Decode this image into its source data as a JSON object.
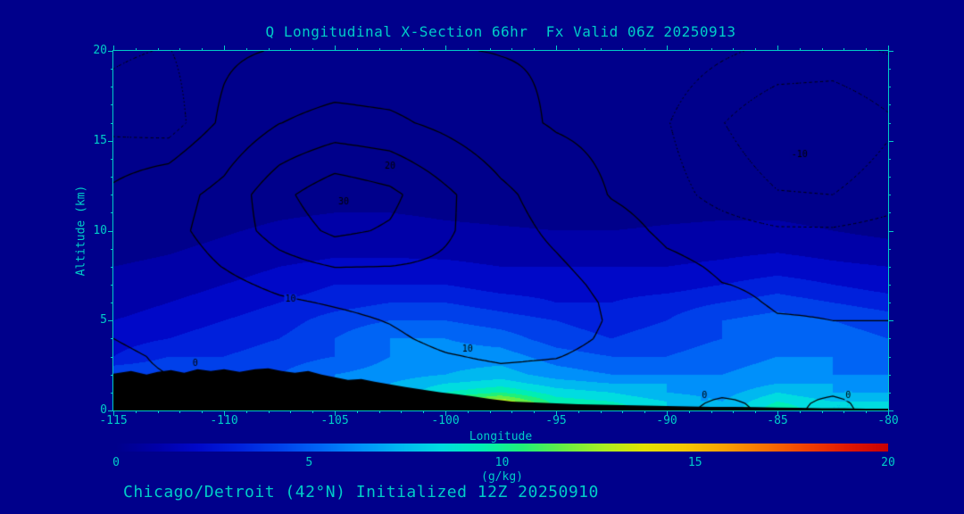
{
  "page": {
    "background": "#00008b",
    "text_color": "#00cdc8"
  },
  "title": "Q Longitudinal X-Section 66hr  Fx Valid 06Z 20250913",
  "caption": "Chicago/Detroit (42°N) Initialized 12Z 20250910",
  "axes": {
    "x_label": "Longitude",
    "y_label": "Altitude (km)",
    "x_ticks": [
      -115,
      -110,
      -105,
      -100,
      -95,
      -90,
      -85,
      -80
    ],
    "y_ticks": [
      0,
      5,
      10,
      15,
      20
    ],
    "x_minor_step": 1,
    "y_minor_step": 1
  },
  "colorbar": {
    "label": "(g/kg)",
    "ticks": [
      0,
      5,
      10,
      15,
      20
    ],
    "min": 0,
    "max": 20
  },
  "chart_data": {
    "type": "heatmap",
    "title": "Q Longitudinal X-Section 66hr  Fx Valid 06Z 20250913",
    "subtitle": "Chicago/Detroit (42°N) Initialized 12Z 20250910",
    "xlabel": "Longitude",
    "ylabel": "Altitude (km)",
    "units": "g/kg",
    "xlim": [
      -115,
      -80
    ],
    "ylim": [
      0,
      20
    ],
    "palette": [
      "#00008b",
      "#0000a8",
      "#0008c8",
      "#0020dc",
      "#0040ea",
      "#0064f5",
      "#0090fa",
      "#00b8f0",
      "#00dce0",
      "#00eeb4",
      "#20f078",
      "#66ee44",
      "#aaee22",
      "#e2e200",
      "#f5c800",
      "#faa000",
      "#f87000",
      "#f04000",
      "#e01800",
      "#c80000"
    ],
    "x_lons": [
      -115,
      -112.5,
      -110,
      -107.5,
      -105,
      -102.5,
      -100,
      -97.5,
      -95,
      -92.5,
      -90,
      -87.5,
      -85,
      -82.5,
      -80
    ],
    "alt_levels_km": [
      0,
      0.5,
      1,
      1.5,
      2,
      3,
      4,
      5,
      6,
      7,
      8,
      10,
      12,
      16,
      20
    ],
    "q_gkg": [
      [
        3,
        4,
        5,
        5,
        6,
        8,
        12,
        15,
        10,
        10,
        8,
        7,
        10,
        8,
        8
      ],
      [
        3,
        4,
        5,
        5,
        6,
        8,
        11,
        13,
        9.5,
        9,
        8,
        7,
        9,
        8,
        8
      ],
      [
        3,
        4,
        4,
        5,
        6,
        7,
        9,
        10,
        8.5,
        8,
        7,
        6.5,
        8,
        7,
        7
      ],
      [
        5,
        4,
        4,
        5,
        6,
        7,
        8,
        8.5,
        7.5,
        7,
        7,
        6,
        7,
        7,
        6.5
      ],
      [
        5,
        5,
        4.5,
        5,
        6,
        6.5,
        7,
        7.5,
        6.5,
        6,
        6,
        6,
        6.5,
        6,
        6
      ],
      [
        3,
        4,
        4,
        4.5,
        5,
        6,
        6.5,
        6.5,
        5.5,
        5,
        5,
        5.5,
        6,
        6,
        5.5
      ],
      [
        2.5,
        3,
        3.5,
        4,
        5,
        6,
        6,
        5.5,
        4.5,
        4,
        4.5,
        5,
        6,
        5.5,
        5
      ],
      [
        2,
        2.5,
        3,
        3.5,
        4.5,
        5,
        5,
        4.5,
        4,
        3.5,
        4,
        5,
        5.5,
        5,
        4.5
      ],
      [
        1.5,
        2,
        2.5,
        3,
        3.5,
        4,
        4,
        3.5,
        3,
        3,
        3.5,
        4,
        4.5,
        4,
        3.5
      ],
      [
        1.2,
        1.5,
        2,
        2.5,
        3,
        3,
        3,
        2.5,
        2.5,
        2.5,
        2.5,
        3,
        3.5,
        3,
        2.5
      ],
      [
        1,
        1.2,
        1.5,
        2,
        2.2,
        2.2,
        2.2,
        2,
        2,
        2,
        2,
        2.2,
        2.5,
        2.2,
        2
      ],
      [
        0.4,
        0.6,
        0.9,
        1.2,
        1.4,
        1.4,
        1.2,
        1.1,
        1,
        1,
        1.1,
        1.2,
        1.2,
        1,
        0.7
      ],
      [
        0.2,
        0.2,
        0.3,
        0.5,
        0.6,
        0.6,
        0.5,
        0.4,
        0.4,
        0.4,
        0.5,
        0.5,
        0.5,
        0.4,
        0.3
      ],
      [
        0.1,
        0.1,
        0.1,
        0.1,
        0.2,
        0.2,
        0.1,
        0.1,
        0.1,
        0.1,
        0.1,
        0.1,
        0.1,
        0.1,
        0.1
      ],
      [
        0,
        0,
        0,
        0,
        0,
        0,
        0,
        0,
        0,
        0,
        0,
        0,
        0,
        0,
        0
      ]
    ],
    "contour_overlay": {
      "levels_solid": [
        0,
        10,
        20,
        30
      ],
      "levels_dashed": [
        -15,
        -10,
        -5
      ],
      "values": [
        [
          -0.2,
          0,
          0.1,
          0.2,
          0.4,
          0.9,
          1.6,
          2.1,
          1.9,
          1.2,
          0.5,
          -0.5,
          0.4,
          -0.4,
          0.6
        ],
        [
          -0.2,
          0,
          0.1,
          0.3,
          0.6,
          1.3,
          2.4,
          3.1,
          2.8,
          1.8,
          0.8,
          -0.3,
          0.5,
          -0.3,
          0.7
        ],
        [
          -0.1,
          0.1,
          0.2,
          0.4,
          0.9,
          1.9,
          3.4,
          4.3,
          3.9,
          2.5,
          1.1,
          0.4,
          0.7,
          0.2,
          0.8
        ],
        [
          -0.1,
          0.1,
          0.3,
          0.6,
          1.2,
          2.6,
          4.6,
          5.9,
          5.3,
          3.4,
          1.5,
          0.5,
          0.3,
          0.1,
          0.5
        ],
        [
          -0.3,
          0,
          0.4,
          0.9,
          1.7,
          3.4,
          6,
          7.6,
          6.9,
          4.4,
          2,
          0.6,
          0.2,
          0.1,
          0.3
        ],
        [
          -0.3,
          0.2,
          0.7,
          1.6,
          3,
          5.3,
          9.2,
          11.5,
          10.4,
          6.6,
          3,
          1,
          0.3,
          0.1,
          0.2
        ],
        [
          0,
          0.5,
          1.4,
          3,
          5,
          8.1,
          12.7,
          15.1,
          13.3,
          8.4,
          3.8,
          1.2,
          0.3,
          0.1,
          0.1
        ],
        [
          0.2,
          1,
          2.7,
          5.2,
          7.4,
          10.5,
          14.9,
          16.8,
          14.6,
          9.1,
          4.1,
          1.3,
          0.2,
          0,
          0
        ],
        [
          0.5,
          1.9,
          4.7,
          8.4,
          10.9,
          13.3,
          16.1,
          17,
          14.2,
          8.7,
          3.7,
          0.8,
          -0.3,
          -0.3,
          -0.2
        ],
        [
          1,
          3.3,
          7.4,
          12.2,
          15.3,
          16.4,
          17.3,
          16.3,
          12.9,
          7.5,
          2.7,
          0.1,
          -0.6,
          -0.7,
          -0.5
        ],
        [
          1.5,
          4.9,
          10.3,
          16.4,
          20.2,
          19.9,
          18.3,
          15.5,
          11.3,
          6,
          1.5,
          -0.8,
          -1.4,
          -1.4,
          -1
        ],
        [
          2,
          7.2,
          14.3,
          24.1,
          32,
          28.9,
          21.3,
          14,
          8.1,
          2.9,
          -1.4,
          -3,
          -4.4,
          -4.5,
          -3.3
        ],
        [
          1.3,
          6.1,
          13,
          27.2,
          36.9,
          32.4,
          22,
          12.2,
          5.2,
          -0.4,
          -3.2,
          -6.6,
          -9.7,
          -10,
          -7.3
        ],
        [
          -6.5,
          -8,
          1.5,
          9.8,
          13.6,
          12,
          7.5,
          2.5,
          -0.8,
          -2.2,
          -4.7,
          -9.8,
          -14.3,
          -14.9,
          -10.9
        ],
        [
          -4.5,
          -5.2,
          -1.3,
          0.5,
          1,
          0.8,
          0.3,
          -0.2,
          -0.6,
          -1.2,
          -2.1,
          -4.2,
          -6.2,
          -6.5,
          -4.7
        ]
      ]
    },
    "contour_labels": [
      {
        "text": "30",
        "lon": -104.6,
        "alt": 11.6
      },
      {
        "text": "20",
        "lon": -102.5,
        "alt": 13.6
      },
      {
        "text": "10",
        "lon": -99.0,
        "alt": 3.4
      },
      {
        "text": "10",
        "lon": -107.0,
        "alt": 6.2
      },
      {
        "text": "0",
        "lon": -111.3,
        "alt": 2.6
      },
      {
        "text": "0",
        "lon": -88.3,
        "alt": 0.8
      },
      {
        "text": "0",
        "lon": -81.8,
        "alt": 0.8
      },
      {
        "text": "-10",
        "lon": -84.0,
        "alt": 14.2
      }
    ],
    "terrain_km": {
      "lons": [
        -115,
        -114.2,
        -113.5,
        -113,
        -112.4,
        -111.8,
        -111.2,
        -110.6,
        -110,
        -109.3,
        -108.6,
        -108,
        -107.4,
        -106.8,
        -106.2,
        -105.6,
        -105,
        -104.4,
        -103.8,
        -103.2,
        -102.5,
        -101.8,
        -101,
        -100.2,
        -99.5,
        -98.8,
        -98,
        -97,
        -96,
        -95,
        -94,
        -93,
        -92,
        -91,
        -90,
        -89,
        -88,
        -87,
        -86,
        -85,
        -84,
        -83,
        -82,
        -81,
        -80
      ],
      "elev": [
        2.05,
        2.2,
        2,
        2.15,
        2.25,
        2.1,
        2.3,
        2.2,
        2.3,
        2.15,
        2.3,
        2.35,
        2.2,
        2.1,
        2.2,
        2,
        1.85,
        1.7,
        1.75,
        1.6,
        1.45,
        1.3,
        1.15,
        1,
        0.9,
        0.8,
        0.65,
        0.5,
        0.45,
        0.4,
        0.35,
        0.32,
        0.3,
        0.27,
        0.25,
        0.22,
        0.2,
        0.2,
        0.18,
        0.16,
        0.15,
        0.13,
        0.12,
        0.1,
        0.1
      ]
    }
  }
}
